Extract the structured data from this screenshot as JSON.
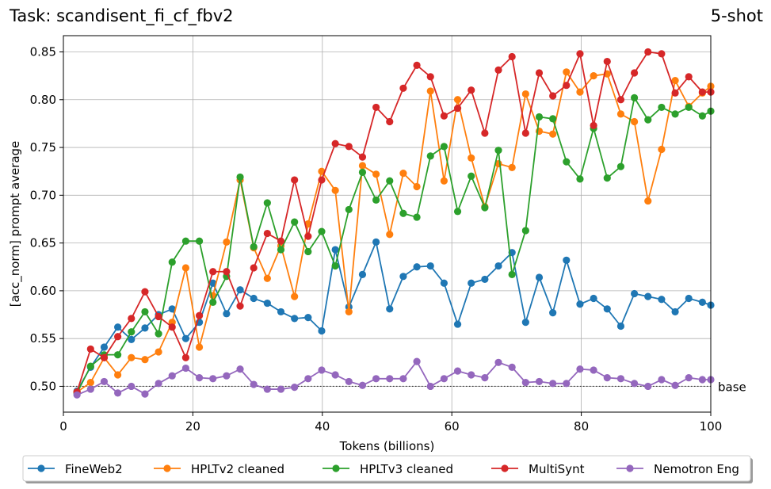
{
  "header": {
    "task_title": "Task: scandisent_fi_cf_fbv2",
    "shot_label": "5-shot"
  },
  "chart_data": {
    "type": "line",
    "title": "Task: scandisent_fi_cf_fbv2",
    "xlabel": "Tokens (billions)",
    "ylabel": "[acc_norm] prompt average",
    "xlim": [
      0,
      100
    ],
    "ylim": [
      0.473,
      0.867
    ],
    "xticks": [
      0,
      20,
      40,
      60,
      80,
      100
    ],
    "yticks": [
      0.5,
      0.55,
      0.6,
      0.65,
      0.7,
      0.75,
      0.8,
      0.85
    ],
    "grid": true,
    "legend_position": "bottom",
    "baseline": {
      "value": 0.5,
      "label": "base"
    },
    "x": [
      2.1,
      4.2,
      6.3,
      8.4,
      10.5,
      12.6,
      14.7,
      16.8,
      18.9,
      21.0,
      23.1,
      25.2,
      27.3,
      29.4,
      31.5,
      33.6,
      35.7,
      37.8,
      39.9,
      42.0,
      44.1,
      46.2,
      48.3,
      50.4,
      52.5,
      54.6,
      56.7,
      58.8,
      60.9,
      63.0,
      65.1,
      67.2,
      69.3,
      71.4,
      73.5,
      75.6,
      77.7,
      79.8,
      81.9,
      84.0,
      86.1,
      88.2,
      90.3,
      92.4,
      94.5,
      96.6,
      98.7,
      100.0
    ],
    "series": [
      {
        "name": "FineWeb2",
        "color": "#1f77b4",
        "values": [
          0.495,
          0.52,
          0.541,
          0.562,
          0.549,
          0.561,
          0.575,
          0.581,
          0.55,
          0.567,
          0.608,
          0.576,
          0.601,
          0.592,
          0.587,
          0.578,
          0.571,
          0.572,
          0.558,
          0.643,
          0.583,
          0.617,
          0.651,
          0.581,
          0.615,
          0.625,
          0.626,
          0.608,
          0.565,
          0.608,
          0.612,
          0.626,
          0.64,
          0.567,
          0.614,
          0.577,
          0.632,
          0.586,
          0.592,
          0.581,
          0.563,
          0.597,
          0.594,
          0.591,
          0.578,
          0.592,
          0.588,
          0.585
        ]
      },
      {
        "name": "HPLTv2 cleaned",
        "color": "#ff7f0e",
        "values": [
          0.494,
          0.504,
          0.53,
          0.512,
          0.53,
          0.528,
          0.536,
          0.567,
          0.624,
          0.541,
          0.595,
          0.651,
          0.716,
          0.645,
          0.613,
          0.647,
          0.594,
          0.67,
          0.725,
          0.705,
          0.578,
          0.731,
          0.722,
          0.659,
          0.723,
          0.709,
          0.809,
          0.715,
          0.8,
          0.739,
          0.688,
          0.733,
          0.729,
          0.806,
          0.767,
          0.764,
          0.829,
          0.808,
          0.825,
          0.827,
          0.785,
          0.777,
          0.694,
          0.748,
          0.82,
          0.793,
          0.807,
          0.814
        ]
      },
      {
        "name": "HPLTv3 cleaned",
        "color": "#2ca02c",
        "values": [
          0.493,
          0.521,
          0.533,
          0.533,
          0.557,
          0.578,
          0.555,
          0.63,
          0.652,
          0.652,
          0.588,
          0.615,
          0.719,
          0.646,
          0.692,
          0.643,
          0.672,
          0.641,
          0.662,
          0.626,
          0.685,
          0.724,
          0.695,
          0.715,
          0.681,
          0.677,
          0.741,
          0.751,
          0.683,
          0.72,
          0.687,
          0.747,
          0.617,
          0.663,
          0.782,
          0.78,
          0.735,
          0.717,
          0.77,
          0.718,
          0.73,
          0.802,
          0.779,
          0.792,
          0.785,
          0.792,
          0.783,
          0.788
        ]
      },
      {
        "name": "MultiSynt",
        "color": "#d62728",
        "values": [
          0.494,
          0.539,
          0.53,
          0.552,
          0.571,
          0.599,
          0.573,
          0.562,
          0.53,
          0.574,
          0.62,
          0.62,
          0.584,
          0.624,
          0.66,
          0.652,
          0.716,
          0.657,
          0.716,
          0.754,
          0.751,
          0.74,
          0.792,
          0.777,
          0.812,
          0.836,
          0.824,
          0.783,
          0.791,
          0.81,
          0.765,
          0.831,
          0.845,
          0.765,
          0.828,
          0.804,
          0.815,
          0.848,
          0.773,
          0.84,
          0.8,
          0.828,
          0.85,
          0.848,
          0.807,
          0.824,
          0.808,
          0.808
        ]
      },
      {
        "name": "Nemotron Eng",
        "color": "#9467bd",
        "values": [
          0.491,
          0.497,
          0.505,
          0.493,
          0.5,
          0.492,
          0.503,
          0.511,
          0.519,
          0.509,
          0.508,
          0.511,
          0.518,
          0.502,
          0.497,
          0.497,
          0.499,
          0.508,
          0.517,
          0.512,
          0.505,
          0.501,
          0.508,
          0.508,
          0.508,
          0.526,
          0.5,
          0.508,
          0.516,
          0.512,
          0.509,
          0.525,
          0.52,
          0.504,
          0.505,
          0.503,
          0.503,
          0.518,
          0.517,
          0.509,
          0.508,
          0.503,
          0.5,
          0.507,
          0.501,
          0.509,
          0.507,
          0.507
        ]
      }
    ]
  }
}
